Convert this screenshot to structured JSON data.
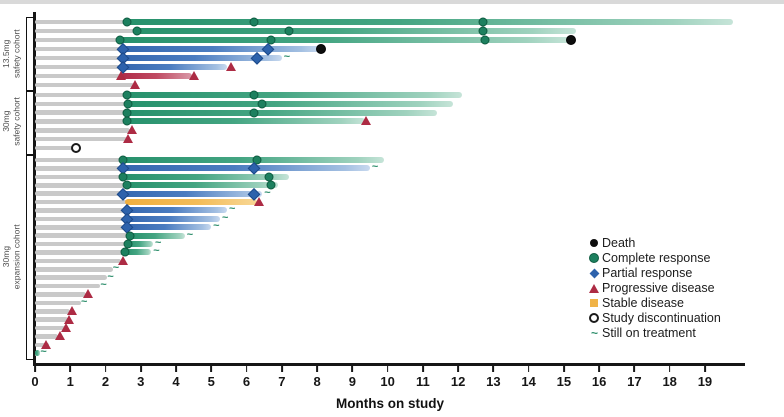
{
  "axis": {
    "label": "Months on study"
  },
  "legend": {
    "items": [
      {
        "key": "death",
        "label": "Death"
      },
      {
        "key": "cr",
        "label": "Complete response"
      },
      {
        "key": "pr",
        "label": "Partial response"
      },
      {
        "key": "pd",
        "label": "Progressive disease"
      },
      {
        "key": "sd",
        "label": "Stable disease"
      },
      {
        "key": "disc",
        "label": "Study discontinuation"
      },
      {
        "key": "sot",
        "label": "Still on treatment"
      }
    ]
  },
  "colors": {
    "complete_response": "#1d805f",
    "partial_response": "#2d62ac",
    "progressive_disease": "#ad2b44",
    "stable_disease": "#f0b347",
    "death": "#0d0d0d",
    "pre_response_bar": "#c9c9c9",
    "axis": "#161616"
  },
  "chart_data": {
    "type": "swimmer",
    "x_axis": {
      "label": "Months on study",
      "min": 0,
      "max": 19,
      "tick_interval": 1
    },
    "marker_types": [
      "death",
      "cr",
      "pr",
      "pd",
      "sd",
      "disc",
      "sot"
    ],
    "cohorts": [
      {
        "label": "13.5mg safety cohort",
        "label_lines": "13.5mg\nsafety cohort",
        "patients": [
          {
            "bar_end": 19.8,
            "response": "cr",
            "response_start": 2.6,
            "markers": [
              {
                "t": "cr",
                "m": 2.6
              },
              {
                "t": "cr",
                "m": 6.2
              },
              {
                "t": "cr",
                "m": 12.7
              }
            ]
          },
          {
            "bar_end": 15.35,
            "response": "cr",
            "response_start": 2.9,
            "markers": [
              {
                "t": "cr",
                "m": 2.9
              },
              {
                "t": "cr",
                "m": 7.2
              },
              {
                "t": "cr",
                "m": 12.7
              }
            ]
          },
          {
            "bar_end": 15.2,
            "response": "cr",
            "response_start": 2.4,
            "markers": [
              {
                "t": "cr",
                "m": 2.4
              },
              {
                "t": "cr",
                "m": 6.7
              },
              {
                "t": "cr",
                "m": 12.75
              },
              {
                "t": "death",
                "m": 15.2
              }
            ]
          },
          {
            "bar_end": 8.1,
            "response": "pr",
            "response_start": 2.5,
            "markers": [
              {
                "t": "pr",
                "m": 2.5
              },
              {
                "t": "pr",
                "m": 6.6
              },
              {
                "t": "death",
                "m": 8.1
              }
            ]
          },
          {
            "bar_end": 7.0,
            "response": "pr",
            "response_start": 2.5,
            "markers": [
              {
                "t": "pr",
                "m": 2.5
              },
              {
                "t": "pr",
                "m": 6.3
              },
              {
                "t": "sot",
                "m": 7.1
              }
            ]
          },
          {
            "bar_end": 5.45,
            "response": "pr",
            "response_start": 2.5,
            "markers": [
              {
                "t": "pr",
                "m": 2.5
              },
              {
                "t": "pd",
                "m": 5.55
              }
            ]
          },
          {
            "bar_end": 4.45,
            "response": "pd",
            "response_start": 2.45,
            "markers": [
              {
                "t": "pd",
                "m": 2.45
              },
              {
                "t": "pd",
                "m": 4.5
              }
            ]
          },
          {
            "bar_end": 2.8,
            "response": null,
            "response_start": null,
            "markers": [
              {
                "t": "pd",
                "m": 2.85
              }
            ]
          }
        ]
      },
      {
        "label": "30mg safety cohort",
        "label_lines": "30mg\nsafety cohort",
        "patients": [
          {
            "bar_end": 12.1,
            "response": "cr",
            "response_start": 2.6,
            "markers": [
              {
                "t": "cr",
                "m": 2.6
              },
              {
                "t": "cr",
                "m": 6.2
              }
            ]
          },
          {
            "bar_end": 11.85,
            "response": "cr",
            "response_start": 2.65,
            "markers": [
              {
                "t": "cr",
                "m": 2.65
              },
              {
                "t": "cr",
                "m": 6.45
              }
            ]
          },
          {
            "bar_end": 11.4,
            "response": "cr",
            "response_start": 2.6,
            "markers": [
              {
                "t": "cr",
                "m": 2.6
              },
              {
                "t": "cr",
                "m": 6.2
              }
            ]
          },
          {
            "bar_end": 9.35,
            "response": "cr",
            "response_start": 2.6,
            "markers": [
              {
                "t": "cr",
                "m": 2.6
              },
              {
                "t": "pd",
                "m": 9.4
              }
            ]
          },
          {
            "bar_end": 2.7,
            "response": null,
            "response_start": null,
            "markers": [
              {
                "t": "pd",
                "m": 2.75
              }
            ]
          },
          {
            "bar_end": 2.6,
            "response": null,
            "response_start": null,
            "markers": [
              {
                "t": "pd",
                "m": 2.65
              }
            ]
          },
          {
            "bar_end": 1.3,
            "response": null,
            "response_start": null,
            "markers": [
              {
                "t": "disc",
                "m": 1.15
              }
            ]
          }
        ]
      },
      {
        "label": "30mg expansion cohort",
        "label_lines": "30mg\nexpansion cohort",
        "patients": [
          {
            "bar_end": 9.9,
            "response": "cr",
            "response_start": 2.5,
            "markers": [
              {
                "t": "cr",
                "m": 2.5
              },
              {
                "t": "cr",
                "m": 6.3
              }
            ]
          },
          {
            "bar_end": 9.5,
            "response": "pr",
            "response_start": 2.5,
            "markers": [
              {
                "t": "pr",
                "m": 2.5
              },
              {
                "t": "pr",
                "m": 6.2
              },
              {
                "t": "sot",
                "m": 9.6
              }
            ]
          },
          {
            "bar_end": 7.2,
            "response": "cr",
            "response_start": 2.5,
            "markers": [
              {
                "t": "cr",
                "m": 2.5
              },
              {
                "t": "cr",
                "m": 6.65
              }
            ]
          },
          {
            "bar_end": 6.9,
            "response": "cr",
            "response_start": 2.6,
            "markers": [
              {
                "t": "cr",
                "m": 2.6
              },
              {
                "t": "cr",
                "m": 6.7
              }
            ]
          },
          {
            "bar_end": 6.45,
            "response": "pr",
            "response_start": 2.5,
            "markers": [
              {
                "t": "pr",
                "m": 2.5
              },
              {
                "t": "pr",
                "m": 6.2
              },
              {
                "t": "sot",
                "m": 6.55
              }
            ]
          },
          {
            "bar_end": 6.3,
            "response": "sd",
            "response_start": 2.55,
            "markers": [
              {
                "t": "pd",
                "m": 6.35
              }
            ]
          },
          {
            "bar_end": 5.45,
            "response": "pr",
            "response_start": 2.6,
            "markers": [
              {
                "t": "pr",
                "m": 2.6
              },
              {
                "t": "sot",
                "m": 5.55
              }
            ]
          },
          {
            "bar_end": 5.25,
            "response": "pr",
            "response_start": 2.6,
            "markers": [
              {
                "t": "pr",
                "m": 2.6
              },
              {
                "t": "sot",
                "m": 5.35
              }
            ]
          },
          {
            "bar_end": 5.0,
            "response": "pr",
            "response_start": 2.6,
            "markers": [
              {
                "t": "pr",
                "m": 2.6
              },
              {
                "t": "sot",
                "m": 5.1
              }
            ]
          },
          {
            "bar_end": 4.25,
            "response": "cr",
            "response_start": 2.7,
            "markers": [
              {
                "t": "cr",
                "m": 2.7
              },
              {
                "t": "sot",
                "m": 4.35
              }
            ]
          },
          {
            "bar_end": 3.35,
            "response": "cr",
            "response_start": 2.65,
            "markers": [
              {
                "t": "cr",
                "m": 2.65
              },
              {
                "t": "sot",
                "m": 3.45
              }
            ]
          },
          {
            "bar_end": 3.3,
            "response": "cr",
            "response_start": 2.55,
            "markers": [
              {
                "t": "cr",
                "m": 2.55
              },
              {
                "t": "sot",
                "m": 3.4
              }
            ]
          },
          {
            "bar_end": 2.45,
            "response": null,
            "response_start": null,
            "markers": [
              {
                "t": "pd",
                "m": 2.5
              }
            ]
          },
          {
            "bar_end": 2.2,
            "response": null,
            "response_start": null,
            "markers": [
              {
                "t": "sot",
                "m": 2.25
              }
            ]
          },
          {
            "bar_end": 2.05,
            "response": null,
            "response_start": null,
            "markers": [
              {
                "t": "sot",
                "m": 2.1
              }
            ]
          },
          {
            "bar_end": 1.85,
            "response": null,
            "response_start": null,
            "markers": [
              {
                "t": "sot",
                "m": 1.9
              }
            ]
          },
          {
            "bar_end": 1.45,
            "response": null,
            "response_start": null,
            "markers": [
              {
                "t": "pd",
                "m": 1.5
              }
            ]
          },
          {
            "bar_end": 1.3,
            "response": null,
            "response_start": null,
            "markers": [
              {
                "t": "sot",
                "m": 1.35
              }
            ]
          },
          {
            "bar_end": 1.0,
            "response": null,
            "response_start": null,
            "markers": [
              {
                "t": "pd",
                "m": 1.05
              }
            ]
          },
          {
            "bar_end": 0.95,
            "response": null,
            "response_start": null,
            "markers": [
              {
                "t": "pd",
                "m": 0.97
              }
            ]
          },
          {
            "bar_end": 0.85,
            "response": null,
            "response_start": null,
            "markers": [
              {
                "t": "pd",
                "m": 0.87
              }
            ]
          },
          {
            "bar_end": 0.65,
            "response": null,
            "response_start": null,
            "markers": [
              {
                "t": "pd",
                "m": 0.7
              }
            ]
          },
          {
            "bar_end": 0.4,
            "response": null,
            "response_start": null,
            "markers": [
              {
                "t": "pd",
                "m": 0.3
              }
            ]
          },
          {
            "bar_end": 0.15,
            "response": "cr",
            "response_start": 0,
            "markers": [
              {
                "t": "sot",
                "m": 0.2
              }
            ]
          }
        ]
      }
    ]
  }
}
